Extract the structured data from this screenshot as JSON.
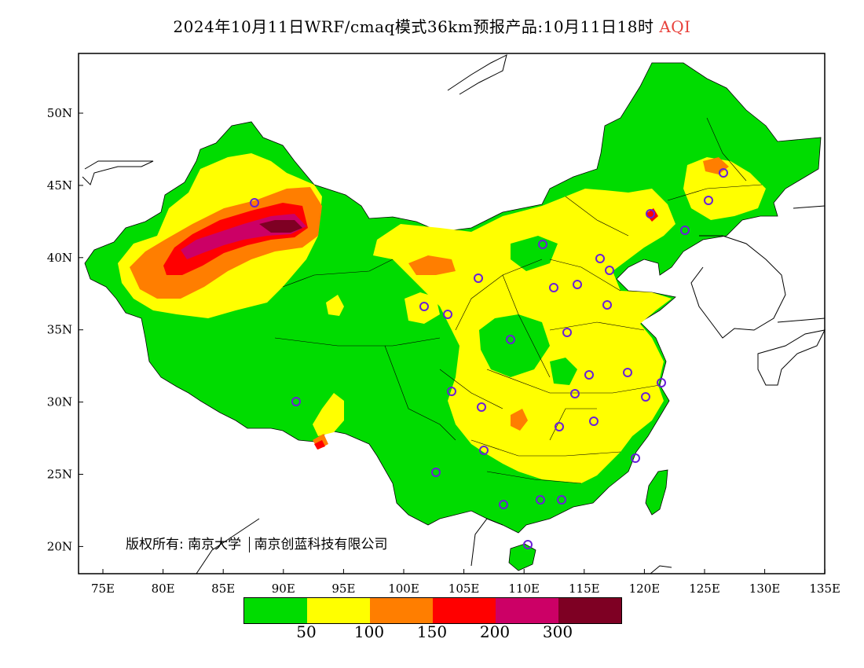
{
  "title": {
    "main": "2024年10月11日WRF/cmaq模式36km预报产品:10月11日18时",
    "variable": "AQI"
  },
  "axes": {
    "longitude_ticks": [
      "75E",
      "80E",
      "85E",
      "90E",
      "95E",
      "100E",
      "105E",
      "110E",
      "115E",
      "120E",
      "125E",
      "130E",
      "135E"
    ],
    "latitude_ticks": [
      "50N",
      "45N",
      "40N",
      "35N",
      "30N",
      "25N",
      "20N"
    ]
  },
  "copyright": {
    "text": "版权所有: 南京大学",
    "text2": "南京创蓝科技有限公司"
  },
  "legend": {
    "colors": [
      "#00dc00",
      "#ffff00",
      "#ff7e00",
      "#ff0000",
      "#cc0066",
      "#7e0023"
    ],
    "labels": [
      "50",
      "100",
      "150",
      "200",
      "300"
    ]
  },
  "colors": {
    "good": "#00dc00",
    "moderate": "#ffff00",
    "usg": "#ff7e00",
    "unhealthy": "#ff0000",
    "very_unhealthy": "#cc0066",
    "hazardous": "#7e0023",
    "station_marker": "#6a1fd8"
  }
}
